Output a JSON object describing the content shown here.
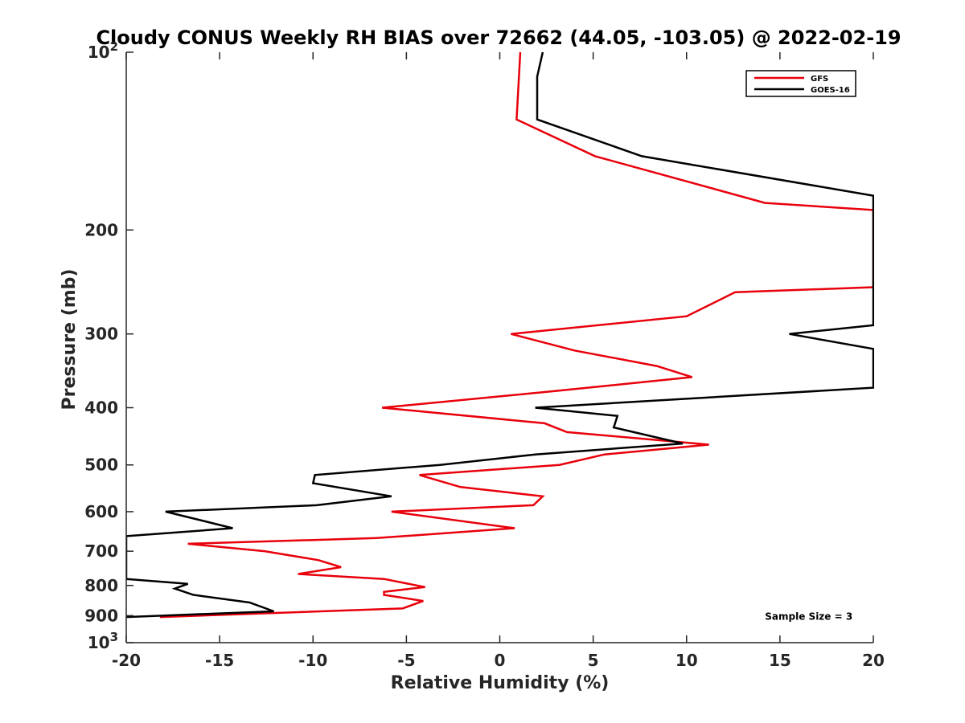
{
  "chart_data": {
    "type": "line",
    "title": "Cloudy CONUS Weekly RH BIAS over 72662 (44.05, -103.05) @ 2022-02-19",
    "xlabel": "Relative Humidity (%)",
    "ylabel": "Pressure (mb)",
    "xlim": [
      -20,
      20
    ],
    "ylim": [
      100,
      1000
    ],
    "y_scale": "log",
    "y_direction": "reversed",
    "grid": false,
    "legend_position": "top-right",
    "x_ticks": [
      -20,
      -15,
      -10,
      -5,
      0,
      5,
      10,
      15,
      20
    ],
    "x_tick_labels": [
      "-20",
      "-15",
      "-10",
      "-5",
      "0",
      "5",
      "10",
      "15",
      "20"
    ],
    "y_ticks": [
      100,
      200,
      300,
      400,
      500,
      600,
      700,
      800,
      900,
      1000
    ],
    "y_tick_labels": [
      {
        "base": "10",
        "exp": "2"
      },
      {
        "base": "200",
        "exp": ""
      },
      {
        "base": "300",
        "exp": ""
      },
      {
        "base": "400",
        "exp": ""
      },
      {
        "base": "500",
        "exp": ""
      },
      {
        "base": "600",
        "exp": ""
      },
      {
        "base": "700",
        "exp": ""
      },
      {
        "base": "800",
        "exp": ""
      },
      {
        "base": "900",
        "exp": ""
      },
      {
        "base": "10",
        "exp": "3"
      }
    ],
    "series": [
      {
        "name": "GFS",
        "color": "#e8000b",
        "points": [
          [
            1.1,
            100
          ],
          [
            0.9,
            130
          ],
          [
            5.1,
            150
          ],
          [
            14.2,
            180
          ],
          [
            20.0,
            185
          ],
          [
            20.0,
            250
          ],
          [
            12.6,
            255
          ],
          [
            10.0,
            280
          ],
          [
            0.6,
            300
          ],
          [
            4.0,
            320
          ],
          [
            8.4,
            340
          ],
          [
            10.3,
            355
          ],
          [
            2.9,
            375
          ],
          [
            -6.3,
            400
          ],
          [
            2.4,
            425
          ],
          [
            3.6,
            440
          ],
          [
            11.2,
            462
          ],
          [
            5.6,
            480
          ],
          [
            3.2,
            500
          ],
          [
            -4.3,
            520
          ],
          [
            -2.1,
            545
          ],
          [
            2.3,
            565
          ],
          [
            1.8,
            585
          ],
          [
            -5.8,
            600
          ],
          [
            0.8,
            640
          ],
          [
            -6.6,
            665
          ],
          [
            -16.7,
            680
          ],
          [
            -12.6,
            700
          ],
          [
            -9.7,
            725
          ],
          [
            -8.5,
            745
          ],
          [
            -10.8,
            765
          ],
          [
            -6.2,
            780
          ],
          [
            -4.0,
            805
          ],
          [
            -6.2,
            820
          ],
          [
            -6.2,
            830
          ],
          [
            -4.1,
            850
          ],
          [
            -5.2,
            875
          ],
          [
            -18.2,
            905
          ]
        ]
      },
      {
        "name": "GOES-16",
        "color": "#000000",
        "points": [
          [
            2.3,
            100
          ],
          [
            2.0,
            110
          ],
          [
            2.0,
            130
          ],
          [
            7.6,
            150
          ],
          [
            20.0,
            175
          ],
          [
            20.0,
            290
          ],
          [
            15.5,
            300
          ],
          [
            20.0,
            318
          ],
          [
            20.0,
            370
          ],
          [
            1.9,
            400
          ],
          [
            6.3,
            413
          ],
          [
            6.1,
            432
          ],
          [
            9.8,
            460
          ],
          [
            1.9,
            480
          ],
          [
            -3.2,
            500
          ],
          [
            -9.9,
            520
          ],
          [
            -10.0,
            537
          ],
          [
            -5.8,
            565
          ],
          [
            -9.8,
            585
          ],
          [
            -17.9,
            600
          ],
          [
            -15.6,
            625
          ],
          [
            -14.3,
            640
          ],
          [
            -20.0,
            660
          ],
          [
            -20.0,
            780
          ],
          [
            -16.7,
            795
          ],
          [
            -17.4,
            810
          ],
          [
            -16.4,
            830
          ],
          [
            -13.4,
            855
          ],
          [
            -12.1,
            885
          ],
          [
            -20.0,
            905
          ]
        ]
      }
    ],
    "annotations": [
      {
        "text": "Sample Size = 3",
        "x": 14.2,
        "y": 903
      }
    ]
  }
}
